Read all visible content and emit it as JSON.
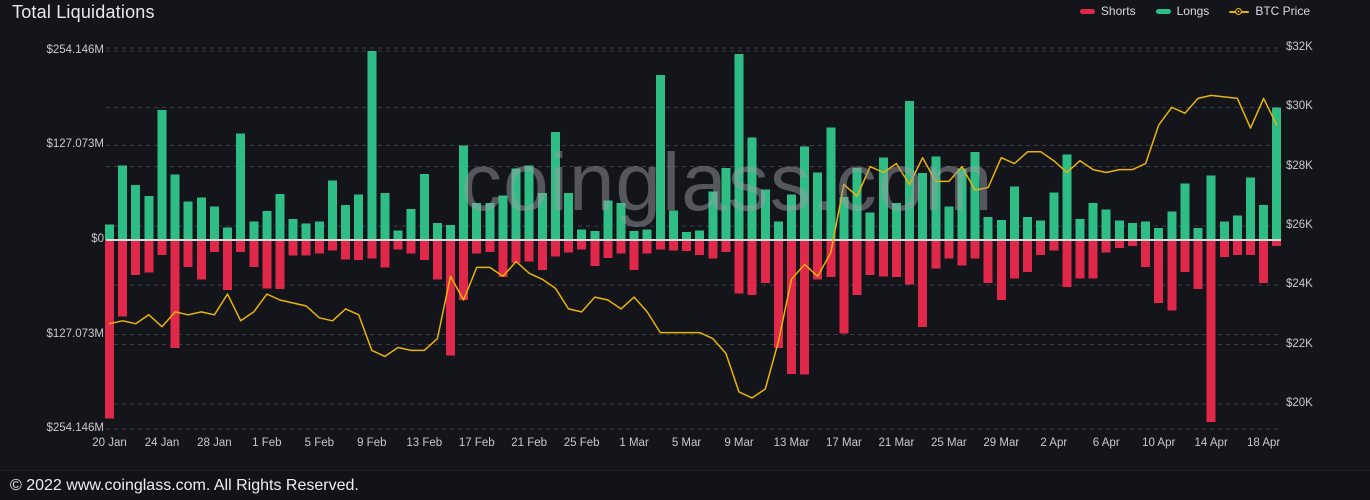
{
  "header": {
    "title": "Total Liquidations"
  },
  "watermark": "coinglass.com",
  "footer": {
    "copyright": "© 2022 www.coinglass.com. All Rights Reserved."
  },
  "colors": {
    "background": "#14151a",
    "shorts": "#e0294a",
    "longs": "#2ebd85",
    "btc_price": "#eab308",
    "zero_line": "#d8d9db",
    "grid": "#3c4046",
    "axis_text": "#c6c9ce"
  },
  "chart_data": {
    "type": "bar",
    "subtype": "diverging bars with overlaid line",
    "title": "Total Liquidations",
    "legend_position": "top-right",
    "grid": "dashed horizontal",
    "unit_left": "USD millions (liquidations)",
    "unit_right": "USD thousands (BTC price)",
    "y_axis_left": {
      "ticks": [
        {
          "label": "$254.146M",
          "value": 254.146
        },
        {
          "label": "$127.073M",
          "value": 127.073
        },
        {
          "label": "$0",
          "value": 0
        },
        {
          "label": "$127.073M",
          "value": -127.073
        },
        {
          "label": "$254.146M",
          "value": -254.146
        }
      ]
    },
    "y_axis_right": {
      "ticks": [
        {
          "label": "$32K",
          "value": 32
        },
        {
          "label": "$30K",
          "value": 30
        },
        {
          "label": "$28K",
          "value": 28
        },
        {
          "label": "$26K",
          "value": 26
        },
        {
          "label": "$24K",
          "value": 24
        },
        {
          "label": "$22K",
          "value": 22
        },
        {
          "label": "$20K",
          "value": 20
        }
      ]
    },
    "x_ticks": [
      "20 Jan",
      "24 Jan",
      "28 Jan",
      "1 Feb",
      "5 Feb",
      "9 Feb",
      "13 Feb",
      "17 Feb",
      "21 Feb",
      "25 Feb",
      "1 Mar",
      "5 Mar",
      "9 Mar",
      "13 Mar",
      "17 Mar",
      "21 Mar",
      "25 Mar",
      "29 Mar",
      "2 Apr",
      "6 Apr",
      "10 Apr",
      "14 Apr",
      "18 Apr"
    ],
    "categories": [
      "20 Jan",
      "21 Jan",
      "22 Jan",
      "23 Jan",
      "24 Jan",
      "25 Jan",
      "26 Jan",
      "27 Jan",
      "28 Jan",
      "29 Jan",
      "30 Jan",
      "31 Jan",
      "1 Feb",
      "2 Feb",
      "3 Feb",
      "4 Feb",
      "5 Feb",
      "6 Feb",
      "7 Feb",
      "8 Feb",
      "9 Feb",
      "10 Feb",
      "11 Feb",
      "12 Feb",
      "13 Feb",
      "14 Feb",
      "15 Feb",
      "16 Feb",
      "17 Feb",
      "18 Feb",
      "19 Feb",
      "20 Feb",
      "21 Feb",
      "22 Feb",
      "23 Feb",
      "24 Feb",
      "25 Feb",
      "26 Feb",
      "27 Feb",
      "28 Feb",
      "1 Mar",
      "2 Mar",
      "3 Mar",
      "4 Mar",
      "5 Mar",
      "6 Mar",
      "7 Mar",
      "8 Mar",
      "9 Mar",
      "10 Mar",
      "11 Mar",
      "12 Mar",
      "13 Mar",
      "14 Mar",
      "15 Mar",
      "16 Mar",
      "17 Mar",
      "18 Mar",
      "19 Mar",
      "20 Mar",
      "21 Mar",
      "22 Mar",
      "23 Mar",
      "24 Mar",
      "25 Mar",
      "26 Mar",
      "27 Mar",
      "28 Mar",
      "29 Mar",
      "30 Mar",
      "31 Mar",
      "1 Apr",
      "2 Apr",
      "3 Apr",
      "4 Apr",
      "5 Apr",
      "6 Apr",
      "7 Apr",
      "8 Apr",
      "9 Apr",
      "10 Apr",
      "11 Apr",
      "12 Apr",
      "13 Apr",
      "14 Apr",
      "15 Apr",
      "16 Apr",
      "17 Apr",
      "18 Apr",
      "19 Apr"
    ],
    "series": [
      {
        "name": "Shorts",
        "type": "bar",
        "direction": "down",
        "color": "#e0294a",
        "unit": "USD millions",
        "values": [
          240,
          103,
          47,
          44,
          20,
          145,
          36,
          53,
          16,
          67,
          16,
          36,
          65,
          66,
          21,
          21,
          18,
          14,
          26,
          27,
          25,
          37,
          13,
          18,
          27,
          53,
          155,
          81,
          18,
          16,
          50,
          31,
          29,
          40,
          22,
          17,
          13,
          35,
          24,
          18,
          40,
          18,
          13,
          14,
          15,
          20,
          25,
          16,
          72,
          74,
          58,
          145,
          180,
          181,
          53,
          50,
          126,
          74,
          47,
          49,
          50,
          60,
          117,
          38,
          25,
          34,
          25,
          58,
          81,
          52,
          43,
          20,
          14,
          63,
          52,
          52,
          17,
          11,
          8,
          36,
          85,
          95,
          43,
          66,
          245,
          23,
          20,
          20,
          58,
          8
        ]
      },
      {
        "name": "Longs",
        "type": "bar",
        "direction": "up",
        "color": "#2ebd85",
        "unit": "USD millions",
        "values": [
          21,
          100,
          74,
          59,
          175,
          88,
          52,
          57,
          45,
          17,
          143,
          25,
          39,
          62,
          28,
          22,
          25,
          80,
          47,
          61,
          254.146,
          63,
          13,
          42,
          89,
          23,
          20,
          127,
          50,
          50,
          60,
          96,
          100,
          63,
          145,
          63,
          14,
          12,
          53,
          50,
          12,
          14,
          222,
          40,
          11,
          13,
          65,
          97,
          250,
          138,
          68,
          25,
          61,
          126,
          91,
          151,
          58,
          97,
          37,
          111,
          50,
          187,
          90,
          112,
          45,
          96,
          118,
          31,
          27,
          72,
          31,
          26,
          64,
          115,
          28,
          50,
          41,
          26,
          23,
          25,
          16,
          38,
          76,
          16,
          87,
          25,
          33,
          84,
          47,
          178
        ]
      },
      {
        "name": "BTC Price",
        "type": "line",
        "color": "#eab308",
        "unit": "USD thousands",
        "values": [
          22.7,
          22.8,
          22.7,
          23.0,
          22.6,
          23.1,
          23.0,
          23.1,
          23.0,
          23.7,
          22.8,
          23.1,
          23.7,
          23.5,
          23.4,
          23.3,
          22.9,
          22.8,
          23.2,
          23.0,
          21.8,
          21.6,
          21.9,
          21.8,
          21.8,
          22.2,
          24.3,
          23.5,
          24.6,
          24.6,
          24.3,
          24.8,
          24.4,
          24.2,
          23.9,
          23.2,
          23.1,
          23.6,
          23.5,
          23.2,
          23.6,
          23.1,
          22.4,
          22.4,
          22.4,
          22.4,
          22.2,
          21.7,
          20.4,
          20.2,
          20.5,
          22.1,
          24.2,
          24.7,
          24.3,
          25.1,
          27.4,
          27.0,
          28.0,
          27.8,
          28.1,
          27.4,
          28.3,
          27.5,
          27.5,
          28.0,
          27.2,
          27.3,
          28.3,
          28.1,
          28.5,
          28.5,
          28.2,
          27.8,
          28.2,
          27.9,
          27.8,
          27.9,
          27.9,
          28.1,
          29.4,
          30.0,
          29.8,
          30.3,
          30.4,
          30.35,
          30.3,
          29.3,
          30.3,
          29.4
        ]
      }
    ]
  }
}
